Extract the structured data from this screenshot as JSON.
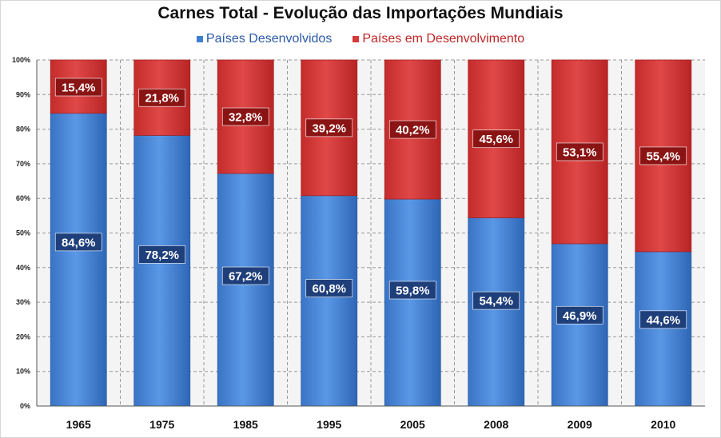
{
  "chart_data": {
    "type": "bar",
    "stacked": true,
    "title": "Carnes Total - Evolução das Importações Mundiais",
    "categories": [
      "1965",
      "1975",
      "1985",
      "1995",
      "2005",
      "2008",
      "2009",
      "2010"
    ],
    "series": [
      {
        "name": "Países Desenvolvidos",
        "color": "#3f7fd3",
        "values": [
          84.6,
          78.2,
          67.2,
          60.8,
          59.8,
          54.4,
          46.9,
          44.6
        ],
        "labels": [
          "84,6%",
          "78,2%",
          "67,2%",
          "60,8%",
          "59,8%",
          "54,4%",
          "46,9%",
          "44,6%"
        ]
      },
      {
        "name": "Países em Desenvolvimento",
        "color": "#d63a3a",
        "values": [
          15.4,
          21.8,
          32.8,
          39.2,
          40.2,
          45.6,
          53.1,
          55.4
        ],
        "labels": [
          "15,4%",
          "21,8%",
          "32,8%",
          "39,2%",
          "40,2%",
          "45,6%",
          "53,1%",
          "55,4%"
        ]
      }
    ],
    "yticks": [
      "0%",
      "10%",
      "20%",
      "30%",
      "40%",
      "50%",
      "60%",
      "70%",
      "80%",
      "90%",
      "100%"
    ],
    "ylim": [
      0,
      100
    ],
    "grid": true,
    "legend_position": "top-center"
  },
  "legend_colors": {
    "developed_text": "#2a5aa8",
    "developing_text": "#c02626"
  }
}
